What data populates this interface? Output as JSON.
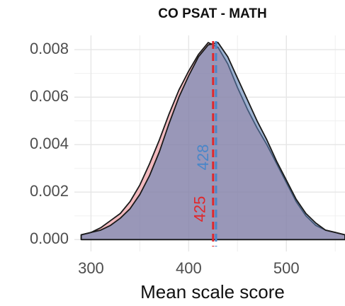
{
  "chart_data": {
    "type": "density",
    "title": "CO PSAT - MATH",
    "x_label": "Mean scale score",
    "x": [
      290,
      300,
      310,
      320,
      330,
      340,
      350,
      360,
      370,
      380,
      390,
      400,
      410,
      420,
      430,
      440,
      450,
      460,
      470,
      480,
      490,
      500,
      510,
      520,
      530,
      540,
      550,
      560
    ],
    "series": [
      {
        "color": "#e98a92",
        "values": [
          0.0002,
          0.0003,
          0.0005,
          0.0008,
          0.0011,
          0.0016,
          0.0023,
          0.0032,
          0.0042,
          0.0053,
          0.0063,
          0.0071,
          0.0078,
          0.0083,
          0.0081,
          0.0074,
          0.0064,
          0.0055,
          0.0047,
          0.004,
          0.0032,
          0.0024,
          0.0016,
          0.001,
          0.0006,
          0.0004,
          0.0003,
          0.0002
        ]
      },
      {
        "color": "#5d80b4",
        "values": [
          0.0002,
          0.0003,
          0.0004,
          0.0006,
          0.0009,
          0.0013,
          0.0019,
          0.0027,
          0.0037,
          0.0049,
          0.006,
          0.0069,
          0.0077,
          0.0082,
          0.0083,
          0.0077,
          0.0068,
          0.0059,
          0.005,
          0.0042,
          0.0033,
          0.0025,
          0.0017,
          0.0011,
          0.0007,
          0.0004,
          0.0003,
          0.0002
        ]
      }
    ],
    "vlines": [
      {
        "value": 425,
        "color": "#e0282c"
      },
      {
        "value": 428,
        "color": "#4a86c8"
      }
    ],
    "xlim": [
      283,
      560
    ],
    "ylim": [
      -0.0005,
      0.0086
    ],
    "xticks": [
      300,
      400,
      500
    ],
    "yticks": [
      {
        "value": 0,
        "label": "0.000"
      },
      {
        "value": 0.002,
        "label": "0.002"
      },
      {
        "value": 0.004,
        "label": "0.004"
      },
      {
        "value": 0.006,
        "label": "0.006"
      },
      {
        "value": 0.008,
        "label": "0.008"
      }
    ],
    "grid": true
  }
}
